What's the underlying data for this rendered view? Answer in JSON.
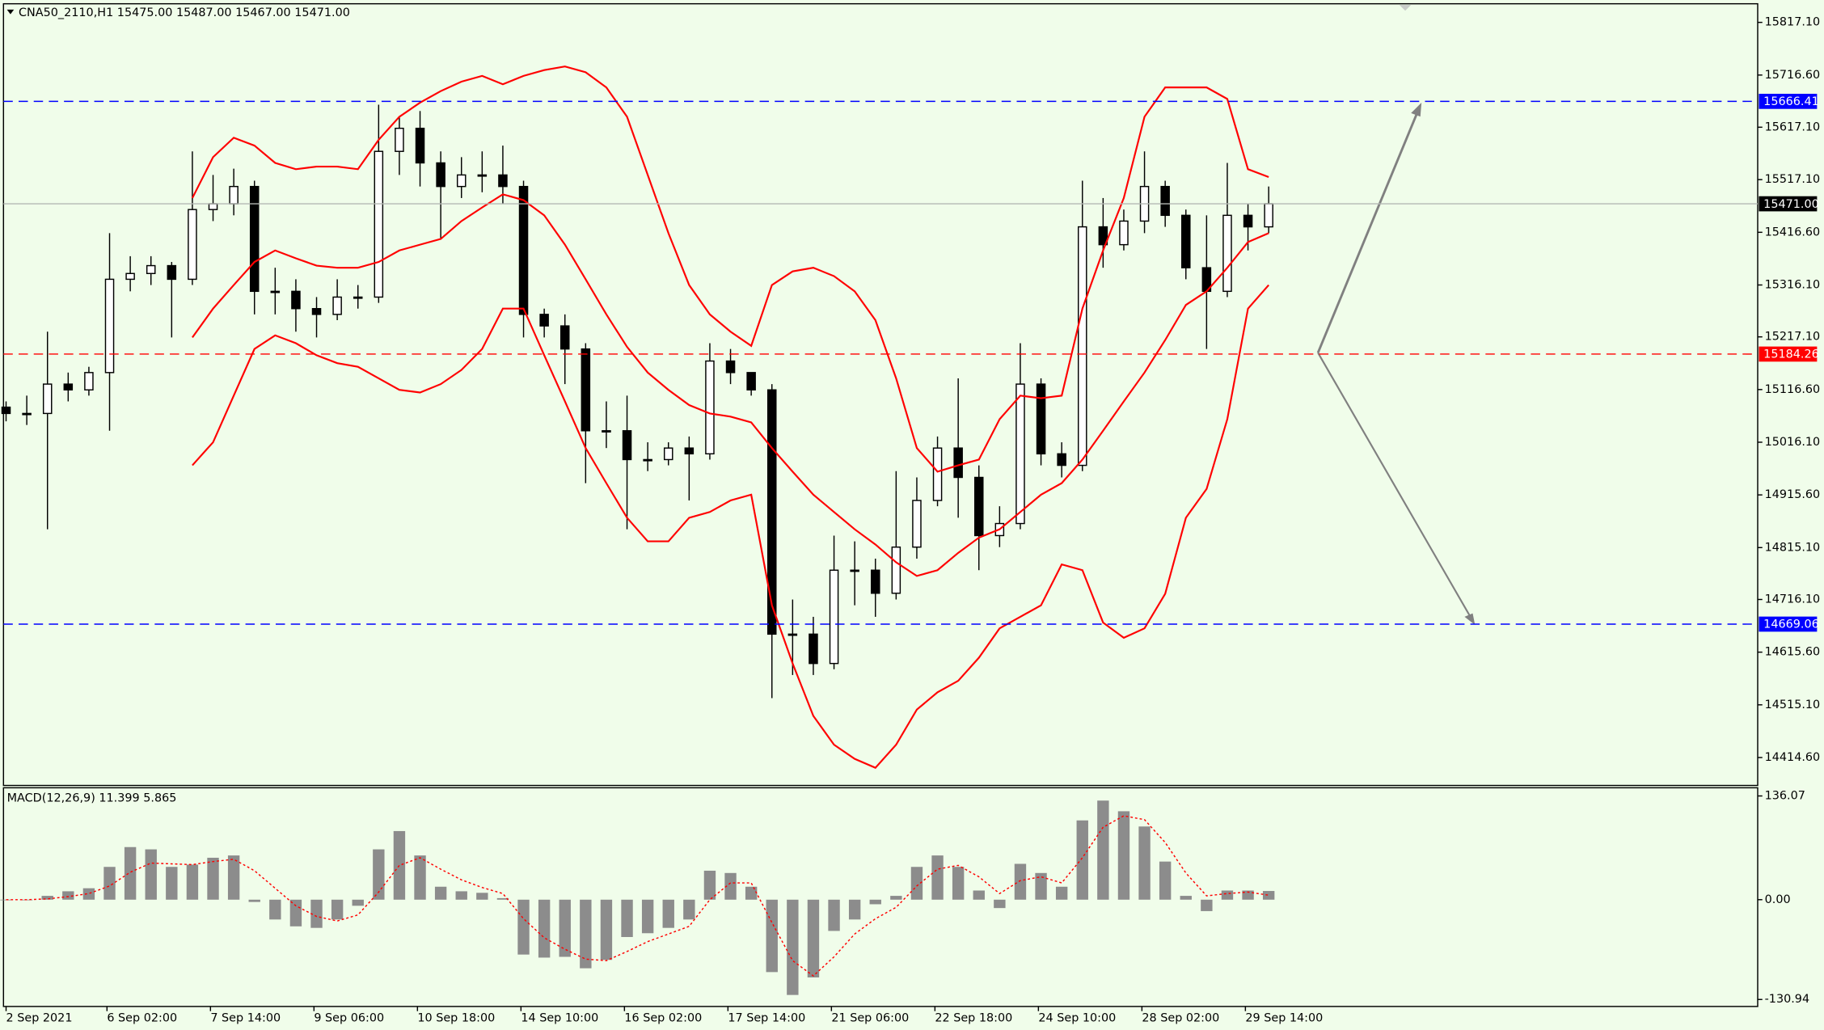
{
  "chart_data": [
    {
      "type": "candlestick",
      "title": "CNA50_2110,H1 15475.00 15487.00 15467.00 15471.00",
      "x": [
        0,
        8,
        16,
        24,
        32,
        40,
        48,
        56,
        64,
        72,
        80,
        88,
        96,
        104,
        112,
        120,
        128,
        136,
        144,
        152,
        160,
        168,
        176,
        184,
        192,
        200,
        208,
        216,
        224,
        232,
        240,
        248,
        256,
        264,
        272,
        280,
        288,
        296,
        304,
        312,
        320,
        328,
        336,
        344,
        352,
        360,
        368,
        376,
        384,
        392,
        400,
        408,
        416,
        424,
        432,
        440,
        448,
        456,
        464,
        472,
        480,
        488
      ],
      "open": [
        15083,
        15071,
        15071,
        15127,
        15116,
        15149,
        15327,
        15338,
        15353,
        15327,
        15460,
        15471,
        15504,
        15304,
        15304,
        15271,
        15260,
        15293,
        15293,
        15571,
        15615,
        15549,
        15504,
        15526,
        15526,
        15504,
        15260,
        15238,
        15194,
        15038,
        15038,
        14983,
        14983,
        15005,
        14994,
        15171,
        15149,
        15116,
        14650,
        14650,
        14594,
        14772,
        14772,
        14728,
        14816,
        14905,
        15005,
        14949,
        14838,
        14861,
        15127,
        14994,
        14972,
        15427,
        15393,
        15438,
        15504,
        15449,
        15349,
        15304,
        15449,
        15427
      ],
      "high": [
        15094,
        15105,
        15227,
        15149,
        15160,
        15415,
        15371,
        15371,
        15360,
        15571,
        15526,
        15538,
        15515,
        15349,
        15327,
        15293,
        15327,
        15316,
        15660,
        15637,
        15648,
        15571,
        15560,
        15571,
        15582,
        15515,
        15271,
        15260,
        15205,
        15094,
        15105,
        15016,
        15016,
        15027,
        15205,
        15194,
        15149,
        15127,
        14716,
        14683,
        14838,
        14827,
        14794,
        14961,
        14949,
        15027,
        15138,
        14972,
        14894,
        15205,
        15138,
        15016,
        15515,
        15482,
        15460,
        15571,
        15515,
        15460,
        15449,
        15549,
        15471,
        15504
      ],
      "low": [
        15056,
        15049,
        14850,
        15094,
        15105,
        15038,
        15304,
        15316,
        15216,
        15316,
        15438,
        15449,
        15260,
        15260,
        15227,
        15216,
        15249,
        15271,
        15282,
        15526,
        15504,
        15404,
        15482,
        15493,
        15471,
        15216,
        15216,
        15127,
        14938,
        15005,
        14850,
        14961,
        14972,
        14905,
        14983,
        15127,
        15105,
        14528,
        14572,
        14572,
        14583,
        14705,
        14683,
        14716,
        14794,
        14894,
        14872,
        14772,
        14816,
        14850,
        14972,
        14949,
        14961,
        15349,
        15382,
        15415,
        15427,
        15327,
        15194,
        15293,
        15382,
        15415
      ],
      "close": [
        15071,
        15071,
        15127,
        15116,
        15149,
        15327,
        15338,
        15353,
        15327,
        15460,
        15471,
        15504,
        15304,
        15304,
        15271,
        15260,
        15293,
        15293,
        15571,
        15615,
        15549,
        15504,
        15526,
        15526,
        15504,
        15260,
        15238,
        15194,
        15038,
        15038,
        14983,
        14983,
        15005,
        14994,
        15171,
        15149,
        15116,
        14650,
        14650,
        14594,
        14772,
        14772,
        14728,
        14816,
        14905,
        15005,
        14949,
        14838,
        14861,
        15127,
        14994,
        14972,
        15427,
        15393,
        15438,
        15504,
        15449,
        15349,
        15304,
        15449,
        15427,
        15471
      ],
      "series": [
        {
          "color": "#ff0000",
          "style": "line",
          "values": [
            null,
            null,
            null,
            null,
            null,
            null,
            null,
            null,
            null,
            15482,
            15560,
            15597,
            15582,
            15549,
            15537,
            15542,
            15542,
            15537,
            15593,
            15637,
            15664,
            15686,
            15704,
            15715,
            15699,
            15715,
            15726,
            15733,
            15722,
            15693,
            15637,
            15526,
            15415,
            15316,
            15260,
            15227,
            15200,
            15316,
            15342,
            15349,
            15333,
            15304,
            15249,
            15138,
            15005,
            14960,
            14972,
            14983,
            15060,
            15105,
            15100,
            15105,
            15271,
            15382,
            15482,
            15637,
            15693,
            15693,
            15693,
            15671,
            15537,
            15522
          ]
        },
        {
          "color": "#ff0000",
          "style": "line",
          "values": [
            null,
            null,
            null,
            null,
            null,
            null,
            null,
            null,
            null,
            15216,
            15271,
            15316,
            15360,
            15382,
            15367,
            15353,
            15349,
            15349,
            15360,
            15382,
            15393,
            15404,
            15438,
            15464,
            15489,
            15478,
            15449,
            15393,
            15327,
            15260,
            15198,
            15149,
            15116,
            15087,
            15071,
            15065,
            15054,
            15005,
            14960,
            14916,
            14883,
            14850,
            14821,
            14787,
            14761,
            14772,
            14805,
            14834,
            14850,
            14883,
            14916,
            14938,
            14983,
            15038,
            15094,
            15149,
            15211,
            15278,
            15304,
            15349,
            15398,
            15415
          ]
        },
        {
          "color": "#ff0000",
          "style": "line",
          "values": [
            null,
            null,
            null,
            null,
            null,
            null,
            null,
            null,
            null,
            14972,
            15016,
            15105,
            15194,
            15220,
            15205,
            15182,
            15167,
            15160,
            15138,
            15116,
            15111,
            15127,
            15154,
            15194,
            15271,
            15271,
            15182,
            15094,
            15005,
            14938,
            14872,
            14827,
            14827,
            14872,
            14883,
            14905,
            14916,
            14705,
            14594,
            14494,
            14439,
            14412,
            14395,
            14439,
            14506,
            14539,
            14561,
            14605,
            14661,
            14683,
            14705,
            14783,
            14772,
            14672,
            14643,
            14661,
            14727,
            14872,
            14927,
            15060,
            15271,
            15316
          ]
        }
      ],
      "levels": [
        {
          "value": 15666.41,
          "color": "#0000ff"
        },
        {
          "value": 15184.26,
          "color": "#ff0000"
        },
        {
          "value": 14669.06,
          "color": "#0000ff"
        }
      ],
      "last_price": {
        "value": 15471,
        "label": "15471.00"
      },
      "xlim": [
        -1,
        677
      ],
      "ylim": [
        14361.3,
        15852.6
      ],
      "yticks": [
        {
          "value": 15817.1,
          "label": "15817.10"
        },
        {
          "value": 15716.6,
          "label": "15716.60"
        },
        {
          "value": 15617.1,
          "label": "15617.10"
        },
        {
          "value": 15517.1,
          "label": "15517.10"
        },
        {
          "value": 15416.6,
          "label": "15416.60"
        },
        {
          "value": 15316.1,
          "label": "15316.10"
        },
        {
          "value": 15217.1,
          "label": "15217.10"
        },
        {
          "value": 15116.6,
          "label": "15116.60"
        },
        {
          "value": 15016.1,
          "label": "15016.10"
        },
        {
          "value": 14915.6,
          "label": "14915.60"
        },
        {
          "value": 14815.1,
          "label": "14815.10"
        },
        {
          "value": 14716.1,
          "label": "14716.10"
        },
        {
          "value": 14615.6,
          "label": "14615.60"
        },
        {
          "value": 14515.1,
          "label": "14515.10"
        },
        {
          "value": 14414.6,
          "label": "14414.60"
        }
      ]
    },
    {
      "type": "macd",
      "title": "MACD(12,26,9) 11.399 5.865",
      "x": [
        0,
        8,
        16,
        24,
        32,
        40,
        48,
        56,
        64,
        72,
        80,
        88,
        96,
        104,
        112,
        120,
        128,
        136,
        144,
        152,
        160,
        168,
        176,
        184,
        192,
        200,
        208,
        216,
        224,
        232,
        240,
        248,
        256,
        264,
        272,
        280,
        288,
        296,
        304,
        312,
        320,
        328,
        336,
        344,
        352,
        360,
        368,
        376,
        384,
        392,
        400,
        408,
        416,
        424,
        432,
        440,
        448,
        456,
        464,
        472,
        480,
        488
      ],
      "series": [
        {
          "color": "#8c8c8c",
          "style": "histogram",
          "values": [
            0,
            0,
            5,
            11,
            15,
            43,
            69,
            66,
            43,
            46,
            55,
            58,
            -3,
            -26,
            -35,
            -37,
            -26,
            -8,
            66,
            90,
            58,
            17,
            11,
            9,
            2,
            -72,
            -76,
            -75,
            -90,
            -79,
            -49,
            -44,
            -37,
            -26,
            38,
            35,
            17,
            -95,
            -125,
            -102,
            -41,
            -26,
            -6,
            5,
            43,
            58,
            43,
            12,
            -11,
            47,
            35,
            17,
            104,
            130,
            116,
            96,
            50,
            5,
            -15,
            12,
            12,
            11.4
          ]
        },
        {
          "color": "#ff0000",
          "style": "dotted",
          "values": [
            0,
            0,
            1,
            4,
            8,
            18,
            36,
            48,
            47,
            46,
            50,
            53,
            38,
            15,
            -8,
            -22,
            -28,
            -20,
            10,
            45,
            55,
            40,
            26,
            16,
            8,
            -25,
            -50,
            -65,
            -78,
            -80,
            -68,
            -55,
            -45,
            -35,
            0,
            22,
            22,
            -30,
            -80,
            -100,
            -75,
            -45,
            -25,
            -10,
            18,
            40,
            45,
            30,
            8,
            25,
            30,
            22,
            55,
            95,
            110,
            105,
            75,
            35,
            5,
            8,
            10,
            5.9
          ]
        }
      ],
      "xlim": [
        -1,
        677
      ],
      "ylim": [
        -140.1,
        146.8
      ],
      "yticks": [
        136.07,
        {
          "value": 0,
          "label": "0.00"
        },
        -130.94
      ],
      "xticks": [
        {
          "value": 0,
          "label": "2 Sep 2021"
        },
        {
          "value": 39,
          "label": "6 Sep 02:00"
        },
        {
          "value": 79,
          "label": "7 Sep 14:00"
        },
        {
          "value": 119,
          "label": "9 Sep 06:00"
        },
        {
          "value": 159,
          "label": "10 Sep 18:00"
        },
        {
          "value": 199,
          "label": "14 Sep 10:00"
        },
        {
          "value": 239,
          "label": "16 Sep 02:00"
        },
        {
          "value": 279,
          "label": "17 Sep 14:00"
        },
        {
          "value": 319,
          "label": "21 Sep 06:00"
        },
        {
          "value": 359,
          "label": "22 Sep 18:00"
        },
        {
          "value": 399,
          "label": "24 Sep 10:00"
        },
        {
          "value": 439,
          "label": "28 Sep 02:00"
        },
        {
          "value": 479,
          "label": "29 Sep 14:00"
        }
      ]
    }
  ]
}
